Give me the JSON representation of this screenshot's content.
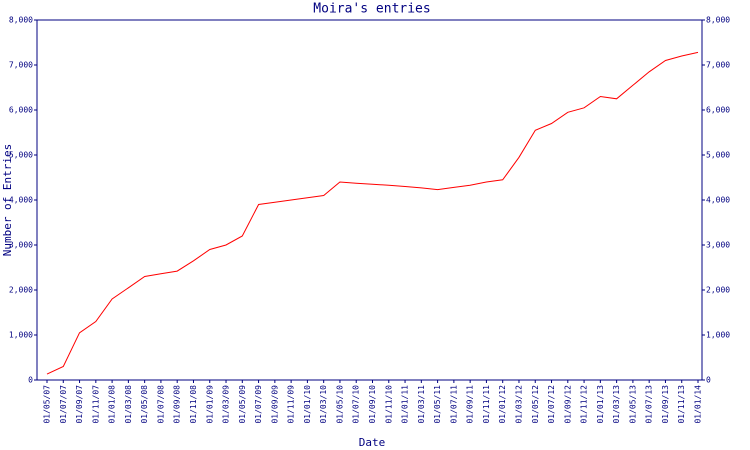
{
  "chart_data": {
    "type": "line",
    "title": "Moira's entries",
    "x_label": "Date",
    "y_label": "Number of Entries",
    "categories": [
      "01/05/07",
      "01/07/07",
      "01/09/07",
      "01/11/07",
      "01/01/08",
      "01/03/08",
      "01/05/08",
      "01/07/08",
      "01/09/08",
      "01/11/08",
      "01/01/09",
      "01/03/09",
      "01/05/09",
      "01/07/09",
      "01/09/09",
      "01/11/09",
      "01/01/10",
      "01/03/10",
      "01/05/10",
      "01/07/10",
      "01/09/10",
      "01/11/10",
      "01/01/11",
      "01/03/11",
      "01/05/11",
      "01/07/11",
      "01/09/11",
      "01/11/11",
      "01/01/12",
      "01/03/12",
      "01/05/12",
      "01/07/12",
      "01/09/12",
      "01/11/12",
      "01/01/13",
      "01/03/13",
      "01/05/13",
      "01/07/13",
      "01/09/13",
      "01/11/13",
      "01/01/14"
    ],
    "values": [
      130,
      300,
      1050,
      1300,
      1800,
      2050,
      2300,
      2360,
      2420,
      2650,
      2900,
      3000,
      3200,
      3900,
      3950,
      4000,
      4050,
      4100,
      4400,
      4370,
      4350,
      4330,
      4300,
      4270,
      4230,
      4280,
      4330,
      4400,
      4450,
      4950,
      5550,
      5700,
      5950,
      6050,
      6300,
      6250,
      6550,
      6850,
      7100,
      7200,
      7280
    ],
    "color": "#ff0000",
    "ylim": [
      0,
      8000
    ],
    "yticks": [
      0,
      {
        "value": 1000,
        "label": "1,000"
      },
      {
        "value": 2000,
        "label": "2,000"
      },
      {
        "value": 3000,
        "label": "3,000"
      },
      {
        "value": 4000,
        "label": "4,000"
      },
      {
        "value": 5000,
        "label": "5,000"
      },
      {
        "value": 6000,
        "label": "6,000"
      },
      {
        "value": 7000,
        "label": "7,000"
      },
      {
        "value": 8000,
        "label": "8,000"
      }
    ],
    "grid": false
  }
}
